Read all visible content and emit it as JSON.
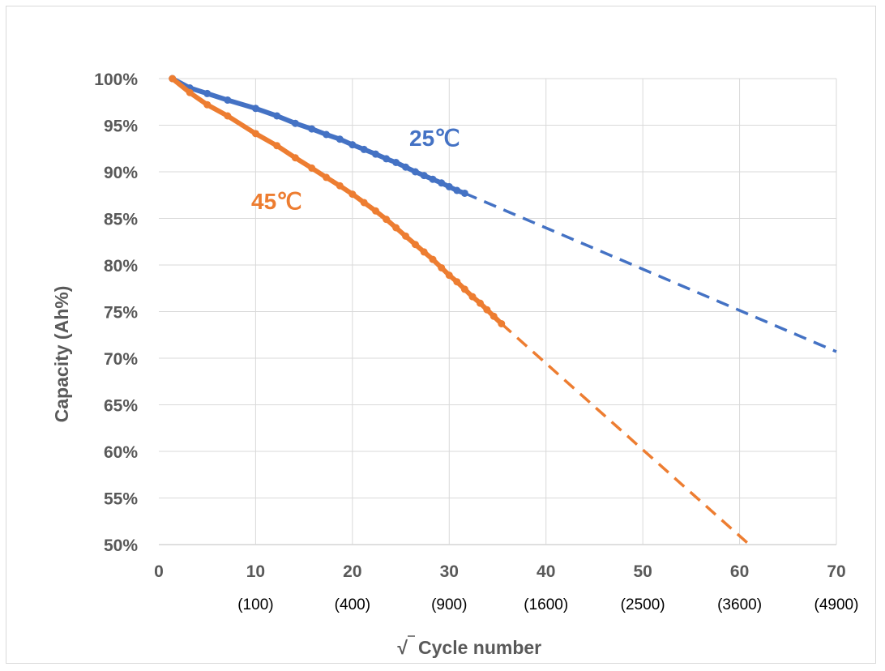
{
  "chart_data": {
    "type": "scatter",
    "title": "",
    "xlabel": "Cycle number",
    "xlabel_prefix": "√",
    "ylabel": "Capacity (Ah%)",
    "xlim": [
      0,
      70
    ],
    "ylim": [
      0.5,
      1.0
    ],
    "grid": true,
    "x_ticks": [
      {
        "value": 0,
        "label": "0",
        "sublabel": ""
      },
      {
        "value": 10,
        "label": "10",
        "sublabel": "(100)"
      },
      {
        "value": 20,
        "label": "20",
        "sublabel": "(400)"
      },
      {
        "value": 30,
        "label": "30",
        "sublabel": "(900)"
      },
      {
        "value": 40,
        "label": "40",
        "sublabel": "(1600)"
      },
      {
        "value": 50,
        "label": "50",
        "sublabel": "(2500)"
      },
      {
        "value": 60,
        "label": "60",
        "sublabel": "(3600)"
      },
      {
        "value": 70,
        "label": "70",
        "sublabel": "(4900)"
      }
    ],
    "y_ticks": [
      {
        "value": 1.0,
        "label": "100%"
      },
      {
        "value": 0.95,
        "label": "95%"
      },
      {
        "value": 0.9,
        "label": "90%"
      },
      {
        "value": 0.85,
        "label": "85%"
      },
      {
        "value": 0.8,
        "label": "80%"
      },
      {
        "value": 0.75,
        "label": "75%"
      },
      {
        "value": 0.7,
        "label": "70%"
      },
      {
        "value": 0.65,
        "label": "65%"
      },
      {
        "value": 0.6,
        "label": "60%"
      },
      {
        "value": 0.55,
        "label": "55%"
      },
      {
        "value": 0.5,
        "label": "50%"
      }
    ],
    "series": [
      {
        "name": "25℃",
        "color": "#4472C4",
        "points": [
          [
            1.4,
            1.0
          ],
          [
            3.2,
            0.99
          ],
          [
            5.0,
            0.984
          ],
          [
            7.1,
            0.977
          ],
          [
            10.0,
            0.968
          ],
          [
            12.2,
            0.96
          ],
          [
            14.1,
            0.952
          ],
          [
            15.8,
            0.946
          ],
          [
            17.3,
            0.94
          ],
          [
            18.7,
            0.935
          ],
          [
            20.0,
            0.929
          ],
          [
            21.2,
            0.924
          ],
          [
            22.4,
            0.919
          ],
          [
            23.5,
            0.914
          ],
          [
            24.5,
            0.91
          ],
          [
            25.5,
            0.905
          ],
          [
            26.5,
            0.9
          ],
          [
            27.4,
            0.896
          ],
          [
            28.3,
            0.892
          ],
          [
            29.2,
            0.888
          ],
          [
            30.0,
            0.884
          ],
          [
            30.8,
            0.88
          ],
          [
            31.6,
            0.877
          ]
        ],
        "extrapolation": [
          [
            31.6,
            0.877
          ],
          [
            70,
            0.707
          ]
        ]
      },
      {
        "name": "45℃",
        "color": "#ED7D31",
        "points": [
          [
            1.4,
            1.0
          ],
          [
            3.2,
            0.985
          ],
          [
            5.0,
            0.972
          ],
          [
            7.1,
            0.96
          ],
          [
            10.0,
            0.941
          ],
          [
            12.2,
            0.928
          ],
          [
            14.1,
            0.915
          ],
          [
            15.8,
            0.904
          ],
          [
            17.3,
            0.894
          ],
          [
            18.7,
            0.885
          ],
          [
            20.0,
            0.876
          ],
          [
            21.2,
            0.867
          ],
          [
            22.4,
            0.858
          ],
          [
            23.5,
            0.849
          ],
          [
            24.5,
            0.84
          ],
          [
            25.5,
            0.831
          ],
          [
            26.5,
            0.822
          ],
          [
            27.4,
            0.814
          ],
          [
            28.3,
            0.806
          ],
          [
            29.2,
            0.797
          ],
          [
            30.0,
            0.789
          ],
          [
            30.8,
            0.782
          ],
          [
            31.6,
            0.774
          ],
          [
            32.4,
            0.766
          ],
          [
            33.2,
            0.759
          ],
          [
            33.9,
            0.752
          ],
          [
            34.6,
            0.745
          ],
          [
            35.4,
            0.737
          ]
        ],
        "extrapolation": [
          [
            35.4,
            0.737
          ],
          [
            61.0,
            0.5
          ]
        ]
      }
    ]
  }
}
